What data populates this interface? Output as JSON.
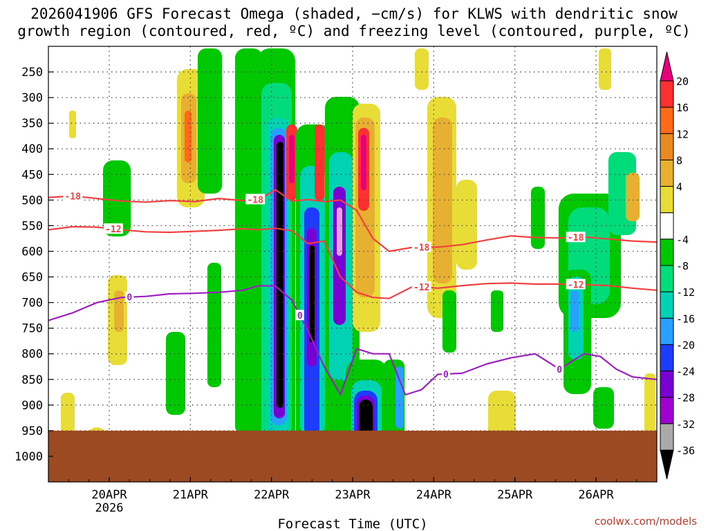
{
  "title_line1": "2026041906 GFS Forecast Omega (shaded, −cm/s) for KLWS with dendritic snow",
  "title_line2": "growth region (contoured, red, ºC) and freezing level (contoured, purple, ºC)",
  "credit": "coolwx.com/models",
  "colors": {
    "ground": "#9b4a22",
    "dgz": "#f04040",
    "freezing": "#9b1fc0"
  },
  "chart_data": {
    "type": "heatmap",
    "title": "2026041906 GFS Forecast Omega (shaded, −cm/s) for KLWS with dendritic snow growth region (contoured, red, ºC) and freezing level (contoured, purple, ºC)",
    "xlabel": "Forecast Time (UTC)",
    "ylabel": "",
    "x_unit": "days since 2026-04-19 06Z",
    "xlim": [
      0,
      7.5
    ],
    "ylim_hPa": [
      200,
      1050
    ],
    "x_ticks": [
      {
        "label": "20APR",
        "sub": "2026",
        "x": 0.75
      },
      {
        "label": "21APR",
        "sub": "",
        "x": 1.75
      },
      {
        "label": "22APR",
        "sub": "",
        "x": 2.75
      },
      {
        "label": "23APR",
        "sub": "",
        "x": 3.75
      },
      {
        "label": "24APR",
        "sub": "",
        "x": 4.75
      },
      {
        "label": "25APR",
        "sub": "",
        "x": 5.75
      },
      {
        "label": "26APR",
        "sub": "",
        "x": 6.75
      }
    ],
    "y_ticks": [
      "250",
      "300",
      "350",
      "400",
      "450",
      "500",
      "550",
      "600",
      "650",
      "700",
      "750",
      "800",
      "850",
      "900",
      "950",
      "1000"
    ],
    "colorbar": {
      "labels": [
        "20",
        "16",
        "12",
        "8",
        "4",
        "-4",
        "-8",
        "-12",
        "-16",
        "-20",
        "-24",
        "-28",
        "-32",
        "-36"
      ],
      "colors": [
        "#e8007a",
        "#ff3030",
        "#ff6a1a",
        "#e88a20",
        "#e8b030",
        "#e8dc36",
        "#ffffff",
        "#00c800",
        "#00dc7a",
        "#00d2b4",
        "#28a0ff",
        "#1e3cff",
        "#7800d2",
        "#a000d2",
        "#aaaaaa",
        "#000000"
      ]
    },
    "ground_level_hPa": 950,
    "series": [
      {
        "name": "-18",
        "contour": "dgz",
        "label_positions": [
          0.3,
          2.55,
          4.6,
          6.5
        ],
        "x": [
          0,
          0.3,
          0.6,
          0.9,
          1.2,
          1.5,
          1.8,
          2.1,
          2.4,
          2.6,
          2.8,
          3.0,
          3.2,
          3.4,
          3.6,
          3.8,
          4.0,
          4.2,
          4.5,
          4.8,
          5.1,
          5.4,
          5.7,
          6.0,
          6.3,
          6.6,
          6.9,
          7.2,
          7.5
        ],
        "y": [
          495,
          492,
          497,
          502,
          504,
          501,
          503,
          497,
          501,
          498,
          480,
          502,
          499,
          503,
          500,
          520,
          575,
          600,
          592,
          592,
          587,
          578,
          570,
          573,
          574,
          572,
          576,
          580,
          582
        ]
      },
      {
        "name": "-12",
        "contour": "dgz",
        "label_positions": [
          0.8,
          4.6,
          6.5
        ],
        "x": [
          0,
          0.3,
          0.6,
          0.9,
          1.2,
          1.5,
          1.8,
          2.1,
          2.4,
          2.6,
          2.8,
          3.0,
          3.2,
          3.4,
          3.6,
          3.8,
          4.0,
          4.2,
          4.5,
          4.8,
          5.1,
          5.4,
          5.7,
          6.0,
          6.3,
          6.6,
          6.9,
          7.2,
          7.5
        ],
        "y": [
          558,
          552,
          553,
          558,
          562,
          563,
          561,
          559,
          556,
          558,
          555,
          560,
          585,
          580,
          650,
          680,
          690,
          692,
          668,
          672,
          667,
          663,
          662,
          664,
          664,
          665,
          667,
          672,
          676
        ]
      },
      {
        "name": "0",
        "contour": "freezing",
        "label_positions": [
          1.0,
          3.1,
          4.9,
          6.3
        ],
        "x": [
          0,
          0.3,
          0.6,
          0.9,
          1.2,
          1.5,
          1.8,
          2.1,
          2.4,
          2.6,
          2.8,
          3.0,
          3.2,
          3.4,
          3.6,
          3.8,
          4.0,
          4.2,
          4.4,
          4.6,
          4.8,
          5.1,
          5.4,
          5.7,
          6.0,
          6.3,
          6.6,
          6.8,
          7.0,
          7.2,
          7.5
        ],
        "y": [
          735,
          720,
          700,
          690,
          688,
          683,
          682,
          680,
          676,
          667,
          668,
          695,
          755,
          825,
          880,
          790,
          800,
          800,
          880,
          870,
          840,
          838,
          820,
          808,
          800,
          830,
          800,
          805,
          830,
          845,
          850
        ]
      }
    ]
  }
}
